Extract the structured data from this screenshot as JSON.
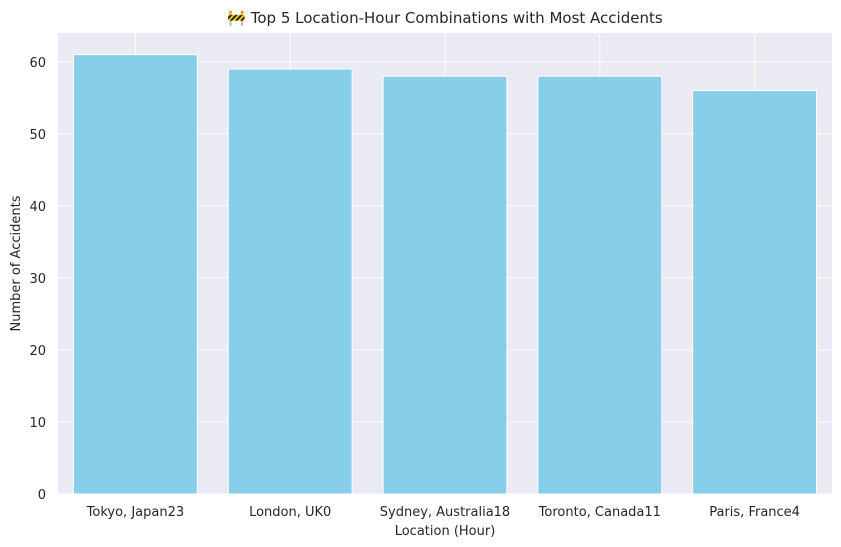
{
  "chart_data": {
    "type": "bar",
    "title": "🚧 Top 5 Location-Hour Combinations with Most Accidents",
    "xlabel": "Location (Hour)",
    "ylabel": "Number of Accidents",
    "categories": [
      "Tokyo, Japan23",
      "London, UK0",
      "Sydney, Australia18",
      "Toronto, Canada11",
      "Paris, France4"
    ],
    "values": [
      61,
      59,
      58,
      58,
      56
    ],
    "ylim": [
      0,
      64
    ],
    "yticks": [
      0,
      10,
      20,
      30,
      40,
      50,
      60
    ],
    "grid": true,
    "bar_color": "#87CEEB",
    "plot_background": "#EAEAF2",
    "grid_color": "#ffffff"
  }
}
